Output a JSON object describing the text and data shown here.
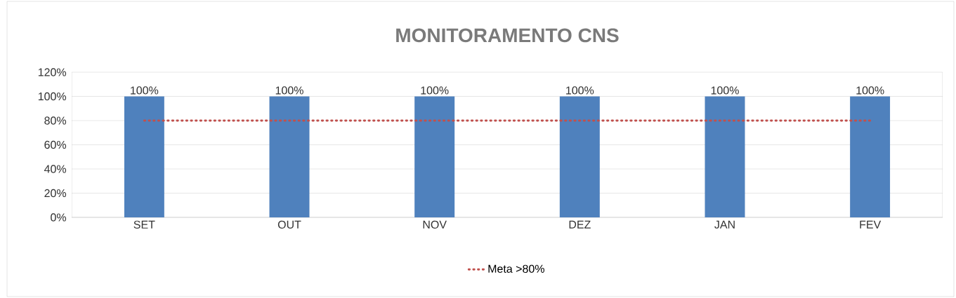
{
  "chart_data": {
    "type": "bar",
    "title": "MONITORAMENTO CNS",
    "categories": [
      "SET",
      "OUT",
      "NOV",
      "DEZ",
      "JAN",
      "FEV"
    ],
    "series": [
      {
        "color": "#4f81bd",
        "values": [
          100,
          100,
          100,
          100,
          100,
          100
        ],
        "value_labels": [
          "100%",
          "100%",
          "100%",
          "100%",
          "100%",
          "100%"
        ]
      },
      {
        "type": "line",
        "name": "Meta >80%",
        "color": "#c0504d",
        "line_style": "dotted",
        "values": [
          80,
          80,
          80,
          80,
          80,
          80
        ]
      }
    ],
    "ylim": [
      0,
      120
    ],
    "yticks": [
      {
        "value": 0,
        "label": "0%"
      },
      {
        "value": 20,
        "label": "20%"
      },
      {
        "value": 40,
        "label": "40%"
      },
      {
        "value": 60,
        "label": "60%"
      },
      {
        "value": 80,
        "label": "80%"
      },
      {
        "value": 100,
        "label": "100%"
      },
      {
        "value": 120,
        "label": "120%"
      }
    ],
    "grid": "y",
    "legend": "bottom"
  }
}
